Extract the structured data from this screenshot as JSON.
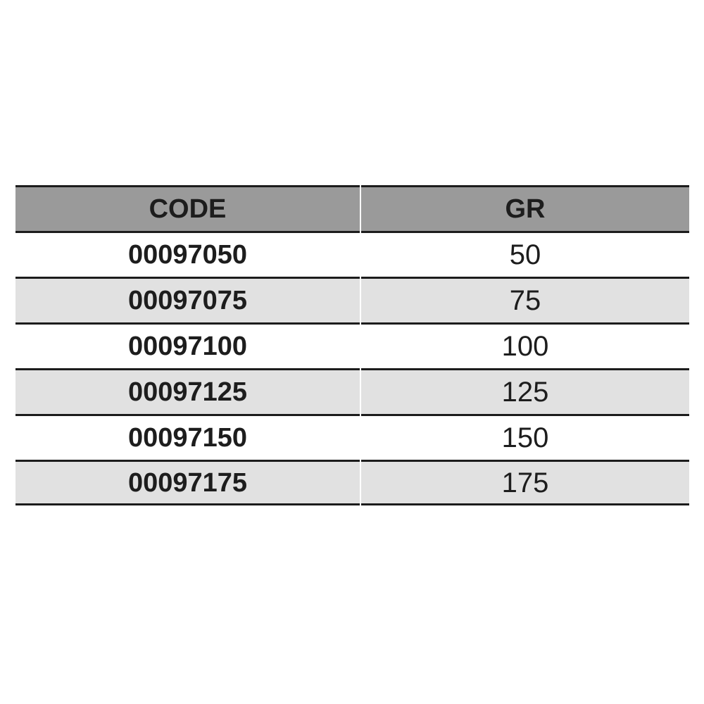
{
  "table": {
    "columns": [
      {
        "label": "CODE"
      },
      {
        "label": "GR"
      }
    ],
    "rows": [
      {
        "code": "00097050",
        "gr": "50"
      },
      {
        "code": "00097075",
        "gr": "75"
      },
      {
        "code": "00097100",
        "gr": "100"
      },
      {
        "code": "00097125",
        "gr": "125"
      },
      {
        "code": "00097150",
        "gr": "150"
      },
      {
        "code": "00097175",
        "gr": "175"
      }
    ],
    "colors": {
      "header_bg": "#9a9a9a",
      "row_bg": "#ffffff",
      "row_alt_bg": "#e1e1e1",
      "border": "#1c1c1c",
      "text": "#1d1d1d"
    }
  }
}
